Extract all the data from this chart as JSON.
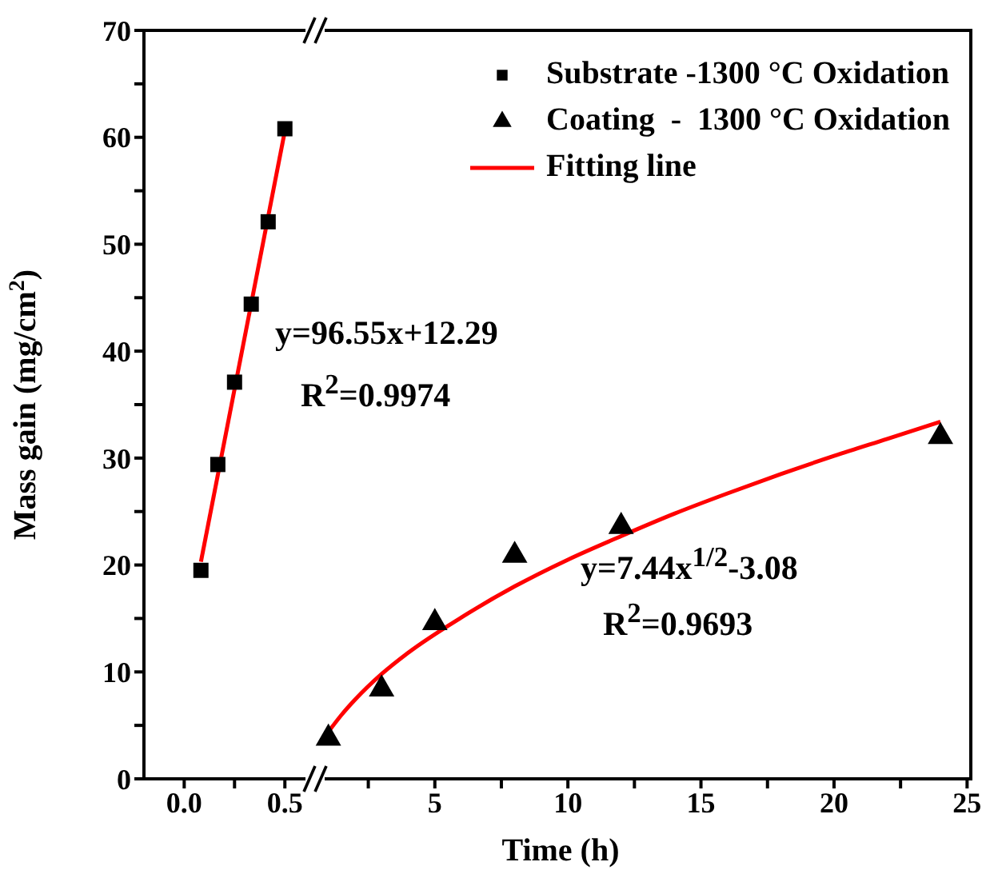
{
  "chart_data": [
    {
      "type": "scatter",
      "ylabel": "Mass gain (mg/cm$^{2}$)",
      "xlim": [
        -0.2,
        0.65
      ],
      "xticks": [
        {
          "value": 0,
          "label": "0.0"
        },
        {
          "value": 0.25,
          "label": null
        },
        0.5
      ],
      "ylim": [
        0,
        70
      ],
      "yticks": [
        0,
        {
          "value": 5,
          "label": null
        },
        10,
        {
          "value": 15,
          "label": null
        },
        20,
        {
          "value": 25,
          "label": null
        },
        30,
        {
          "value": 35,
          "label": null
        },
        40,
        {
          "value": 45,
          "label": null
        },
        50,
        {
          "value": 55,
          "label": null
        },
        60,
        {
          "value": 65,
          "label": null
        },
        70
      ],
      "legend": "top right",
      "annotations": [
        "y=96.55x+12.29",
        "R$^{2}$=0.9974"
      ],
      "series": [
        {
          "name": "Substrate -1300 °C Oxidation",
          "marker": "square",
          "color": "#000000",
          "x": [
            0.083,
            0.167,
            0.25,
            0.333,
            0.417,
            0.5
          ],
          "values": [
            19.5,
            29.4,
            37.1,
            44.4,
            52.1,
            60.8
          ]
        },
        {
          "type": "line",
          "marker": "none",
          "color": "#ff0000",
          "x": [
            0.083,
            0.5
          ],
          "values": [
            20.3,
            60.6
          ]
        }
      ]
    },
    {
      "type": "scatter",
      "xlabel": "Time (h)",
      "xlim": [
        0.5,
        25.2
      ],
      "xticks": [
        {
          "value": 2.5,
          "label": null
        },
        5,
        {
          "value": 7.5,
          "label": null
        },
        10,
        {
          "value": 12.5,
          "label": null
        },
        15,
        {
          "value": 17.5,
          "label": null
        },
        20,
        {
          "value": 22.5,
          "label": null
        },
        25
      ],
      "ylim": [
        0,
        70
      ],
      "tick_labels": "x",
      "legend": "top right",
      "annotations": [
        "y=7.44x$^{1/2}$-3.08",
        "R$^{2}$=0.9693"
      ],
      "series": [
        {
          "name": "Coating  -  1300 °C Oxidation",
          "marker": "triangle",
          "color": "#000000",
          "x": [
            1,
            3,
            5,
            8,
            12,
            24
          ],
          "values": [
            3.8,
            8.4,
            14.6,
            20.9,
            23.6,
            32.0
          ]
        },
        {
          "name": "Fitting line",
          "type": "line",
          "marker": "none",
          "color": "#ff0000",
          "x": [
            1,
            1.5,
            2,
            3,
            4,
            6,
            8,
            10,
            12,
            14,
            16,
            18,
            20,
            22,
            24
          ],
          "values": [
            4.4,
            6.0,
            7.4,
            9.8,
            11.8,
            15.1,
            18.0,
            20.5,
            22.7,
            24.8,
            26.7,
            28.5,
            30.2,
            31.8,
            33.4
          ]
        }
      ]
    }
  ]
}
